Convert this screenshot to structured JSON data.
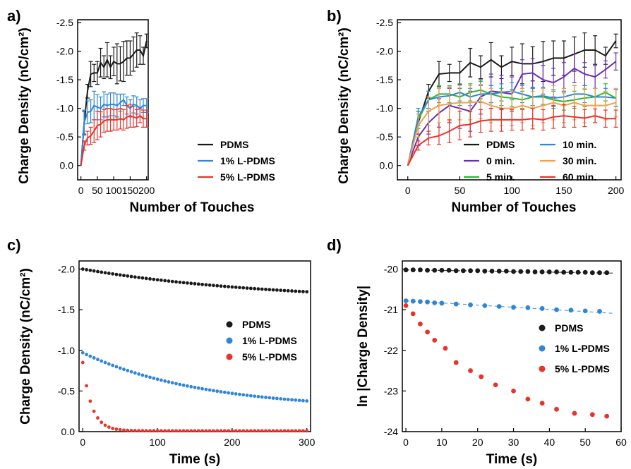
{
  "chart_data": [
    {
      "panel": "a)",
      "type": "line",
      "xlabel": "Number of Touches",
      "ylabel": "Charge Density (nC/cm²)",
      "xlim": [
        -10,
        205
      ],
      "ylim": [
        0.25,
        -2.55
      ],
      "xticks": [
        "0",
        "50",
        "100",
        "150",
        "200"
      ],
      "yticks": [
        "-2.5",
        "-2.0",
        "-1.5",
        "-1.0",
        "-0.5",
        "0.0"
      ],
      "legend": "bottom-right",
      "series": [
        {
          "name": "PDMS",
          "color": "#1a1a1a",
          "x": [
            0,
            10,
            20,
            30,
            40,
            50,
            60,
            70,
            80,
            90,
            100,
            110,
            120,
            130,
            140,
            150,
            160,
            170,
            180,
            190,
            200
          ],
          "y": [
            0,
            -0.75,
            -1.3,
            -1.6,
            -1.62,
            -1.62,
            -1.8,
            -1.72,
            -1.85,
            -1.72,
            -1.82,
            -1.78,
            -1.78,
            -1.82,
            -1.88,
            -1.88,
            -1.95,
            -2.02,
            -2.02,
            -1.92,
            -2.18
          ],
          "err": [
            0,
            0.2,
            0.12,
            0.22,
            0.15,
            0.2,
            0.25,
            0.2,
            0.3,
            0.2,
            0.25,
            0.35,
            0.3,
            0.35,
            0.3,
            0.3,
            0.3,
            0.3,
            0.25,
            0.15,
            0.12
          ]
        },
        {
          "name": "1% L-PDMS",
          "color": "#2f86d8",
          "x": [
            0,
            10,
            20,
            30,
            40,
            50,
            60,
            70,
            80,
            90,
            100,
            110,
            120,
            130,
            140,
            150,
            160,
            170,
            180,
            190,
            200
          ],
          "y": [
            0,
            -0.75,
            -0.93,
            -0.95,
            -1.05,
            -1.02,
            -1.0,
            -1.07,
            -1.05,
            -1.07,
            -1.07,
            -1.05,
            -1.1,
            -1.15,
            -1.05,
            -1.0,
            -1.07,
            -1.05,
            -1.0,
            -1.05,
            -1.05
          ],
          "err": [
            0,
            0.22,
            0.2,
            0.2,
            0.25,
            0.22,
            0.2,
            0.22,
            0.2,
            0.2,
            0.2,
            0.2,
            0.15,
            0.1,
            0.15,
            0.15,
            0.15,
            0.15,
            0.15,
            0.12,
            0.12
          ]
        },
        {
          "name": "5% L-PDMS",
          "color": "#e8332a",
          "x": [
            0,
            10,
            20,
            30,
            40,
            50,
            60,
            70,
            80,
            90,
            100,
            110,
            120,
            130,
            140,
            150,
            160,
            170,
            180,
            190,
            200
          ],
          "y": [
            0,
            -0.35,
            -0.48,
            -0.52,
            -0.6,
            -0.7,
            -0.72,
            -0.78,
            -0.8,
            -0.8,
            -0.8,
            -0.8,
            -0.82,
            -0.8,
            -0.85,
            -0.87,
            -0.85,
            -0.83,
            -0.87,
            -0.82,
            -0.82
          ],
          "err": [
            0,
            0.08,
            0.12,
            0.15,
            0.2,
            0.25,
            0.22,
            0.2,
            0.2,
            0.2,
            0.18,
            0.18,
            0.18,
            0.18,
            0.2,
            0.2,
            0.18,
            0.15,
            0.12,
            0.15,
            0.15
          ]
        }
      ]
    },
    {
      "panel": "b)",
      "type": "line",
      "xlabel": "Number of Touches",
      "ylabel": "Charge Density (nC/cm²)",
      "xlim": [
        -10,
        205
      ],
      "ylim": [
        0.25,
        -2.55
      ],
      "xticks": [
        "0",
        "50",
        "100",
        "150",
        "200"
      ],
      "yticks": [
        "-2.5",
        "-2.0",
        "-1.5",
        "-1.0",
        "-0.5",
        "0.0"
      ],
      "legend": "bottom-right",
      "series": [
        {
          "name": "PDMS",
          "color": "#1a1a1a",
          "x": [
            0,
            10,
            20,
            30,
            40,
            50,
            60,
            70,
            80,
            90,
            100,
            110,
            120,
            130,
            140,
            150,
            160,
            170,
            180,
            190,
            200
          ],
          "y": [
            0,
            -0.75,
            -1.3,
            -1.6,
            -1.62,
            -1.62,
            -1.8,
            -1.72,
            -1.85,
            -1.72,
            -1.82,
            -1.78,
            -1.78,
            -1.82,
            -1.88,
            -1.88,
            -1.95,
            -2.02,
            -2.02,
            -1.92,
            -2.18
          ],
          "err": [
            0,
            0.2,
            0.12,
            0.22,
            0.15,
            0.2,
            0.25,
            0.2,
            0.3,
            0.2,
            0.25,
            0.35,
            0.3,
            0.35,
            0.3,
            0.3,
            0.3,
            0.3,
            0.25,
            0.15,
            0.12
          ]
        },
        {
          "name": "0 min.",
          "color": "#6a2db8",
          "x": [
            0,
            10,
            20,
            30,
            40,
            50,
            60,
            70,
            80,
            90,
            100,
            110,
            120,
            130,
            140,
            150,
            160,
            170,
            180,
            190,
            200
          ],
          "y": [
            0,
            -0.5,
            -0.75,
            -0.92,
            -1.05,
            -1.0,
            -0.95,
            -1.2,
            -1.3,
            -1.28,
            -1.25,
            -1.6,
            -1.62,
            -1.5,
            -1.45,
            -1.55,
            -1.7,
            -1.6,
            -1.55,
            -1.68,
            -1.82
          ],
          "err": [
            0,
            0.15,
            0.2,
            0.25,
            0.3,
            0.35,
            0.35,
            0.3,
            0.3,
            0.3,
            0.3,
            0.25,
            0.25,
            0.25,
            0.25,
            0.25,
            0.25,
            0.2,
            0.2,
            0.15,
            0.15
          ]
        },
        {
          "name": "5 min.",
          "color": "#2ab830",
          "x": [
            0,
            10,
            20,
            30,
            40,
            50,
            60,
            70,
            80,
            90,
            100,
            110,
            120,
            130,
            140,
            150,
            160,
            170,
            180,
            190,
            200
          ],
          "y": [
            0,
            -0.8,
            -1.15,
            -1.25,
            -1.25,
            -1.2,
            -1.28,
            -1.32,
            -1.25,
            -1.2,
            -1.18,
            -1.15,
            -1.2,
            -1.2,
            -1.15,
            -1.12,
            -1.15,
            -1.18,
            -1.2,
            -1.28,
            -1.18
          ],
          "err": [
            0,
            0.15,
            0.15,
            0.15,
            0.15,
            0.15,
            0.15,
            0.15,
            0.15,
            0.15,
            0.15,
            0.15,
            0.15,
            0.15,
            0.15,
            0.15,
            0.15,
            0.15,
            0.15,
            0.15,
            0.15
          ]
        },
        {
          "name": "10 min.",
          "color": "#2f86d8",
          "x": [
            0,
            10,
            20,
            30,
            40,
            50,
            60,
            70,
            80,
            90,
            100,
            110,
            120,
            130,
            140,
            150,
            160,
            170,
            180,
            190,
            200
          ],
          "y": [
            0,
            -0.85,
            -1.15,
            -1.2,
            -1.22,
            -1.28,
            -1.2,
            -1.25,
            -1.25,
            -1.28,
            -1.3,
            -1.25,
            -1.2,
            -1.22,
            -1.18,
            -1.2,
            -1.25,
            -1.25,
            -1.2,
            -1.2,
            -1.18
          ],
          "err": [
            0,
            0.15,
            0.15,
            0.15,
            0.15,
            0.15,
            0.15,
            0.15,
            0.15,
            0.15,
            0.15,
            0.15,
            0.15,
            0.15,
            0.15,
            0.15,
            0.15,
            0.15,
            0.15,
            0.15,
            0.15
          ]
        },
        {
          "name": "30 min.",
          "color": "#f2a14a",
          "x": [
            0,
            10,
            20,
            30,
            40,
            50,
            60,
            70,
            80,
            90,
            100,
            110,
            120,
            130,
            140,
            150,
            160,
            170,
            180,
            190,
            200
          ],
          "y": [
            0,
            -0.7,
            -0.95,
            -1.05,
            -1.08,
            -1.1,
            -1.1,
            -1.12,
            -1.05,
            -1.0,
            -1.0,
            -1.05,
            -1.0,
            -1.05,
            -1.1,
            -1.05,
            -1.1,
            -1.05,
            -1.05,
            -1.05,
            -1.1
          ],
          "err": [
            0,
            0.2,
            0.25,
            0.3,
            0.3,
            0.3,
            0.3,
            0.3,
            0.3,
            0.3,
            0.3,
            0.3,
            0.3,
            0.3,
            0.3,
            0.3,
            0.3,
            0.3,
            0.3,
            0.25,
            0.25
          ]
        },
        {
          "name": "60 min.",
          "color": "#e8332a",
          "x": [
            0,
            10,
            20,
            30,
            40,
            50,
            60,
            70,
            80,
            90,
            100,
            110,
            120,
            130,
            140,
            150,
            160,
            170,
            180,
            190,
            200
          ],
          "y": [
            0,
            -0.35,
            -0.48,
            -0.52,
            -0.6,
            -0.7,
            -0.72,
            -0.78,
            -0.8,
            -0.8,
            -0.8,
            -0.8,
            -0.82,
            -0.8,
            -0.85,
            -0.87,
            -0.85,
            -0.83,
            -0.87,
            -0.82,
            -0.82
          ],
          "err": [
            0,
            0.08,
            0.12,
            0.15,
            0.2,
            0.25,
            0.22,
            0.2,
            0.2,
            0.2,
            0.18,
            0.18,
            0.18,
            0.18,
            0.2,
            0.2,
            0.18,
            0.15,
            0.12,
            0.15,
            0.15
          ]
        }
      ]
    },
    {
      "panel": "c)",
      "type": "scatter",
      "xlabel": "Time (s)",
      "ylabel": "Charge Density (nC/cm²)",
      "xlim": [
        -5,
        305
      ],
      "ylim": [
        0,
        -2.1
      ],
      "xticks": [
        "0",
        "100",
        "200",
        "300"
      ],
      "yticks": [
        "-2.0",
        "-1.5",
        "-1.0",
        "-0.5",
        "0.0"
      ],
      "legend": "center-right",
      "series": [
        {
          "name": "PDMS",
          "color": "#1a1a1a",
          "model": {
            "a": -2.0,
            "b": -0.4,
            "tau": 250,
            "c": 0,
            "n": 60,
            "tmax": 300
          }
        },
        {
          "name": "1% L-PDMS",
          "color": "#2f86d8",
          "model": {
            "a": -0.97,
            "b": -0.7,
            "tau": 160,
            "c": 0,
            "n": 60,
            "tmax": 300
          }
        },
        {
          "name": "5% L-PDMS",
          "color": "#e8332a",
          "model": {
            "a": -0.85,
            "b": -0.84,
            "tau": 12,
            "c": -0.01,
            "n": 60,
            "tmax": 300
          }
        }
      ]
    },
    {
      "panel": "d)",
      "type": "scatter",
      "xlabel": "Time (s)",
      "ylabel": "ln |Charge Density|",
      "xlim": [
        -1,
        60
      ],
      "ylim": [
        -24,
        -19.8
      ],
      "xticks": [
        "0",
        "10",
        "20",
        "30",
        "40",
        "50",
        "60"
      ],
      "yticks": [
        "-20",
        "-21",
        "-22",
        "-23",
        "-24"
      ],
      "legend": "center-right",
      "series": [
        {
          "name": "PDMS",
          "color": "#1a1a1a",
          "x": [
            0,
            2,
            4,
            6,
            8,
            10,
            12,
            14,
            16,
            18,
            20,
            22,
            24,
            26,
            28,
            30,
            32,
            34,
            36,
            38,
            40,
            42,
            44,
            46,
            48,
            50,
            52,
            54,
            56
          ],
          "y": [
            -20.02,
            -20.02,
            -20.02,
            -20.03,
            -20.03,
            -20.03,
            -20.03,
            -20.04,
            -20.04,
            -20.04,
            -20.04,
            -20.05,
            -20.05,
            -20.05,
            -20.05,
            -20.06,
            -20.06,
            -20.06,
            -20.07,
            -20.07,
            -20.07,
            -20.07,
            -20.08,
            -20.08,
            -20.08,
            -20.08,
            -20.09,
            -20.09,
            -20.09
          ],
          "fit": [
            [
              0,
              -20.02
            ],
            [
              58,
              -20.1
            ]
          ]
        },
        {
          "name": "1% L-PDMS",
          "color": "#2f86d8",
          "x": [
            0,
            2,
            4,
            6,
            8,
            10,
            14,
            18,
            22,
            26,
            30,
            34,
            38,
            42,
            46,
            50,
            54
          ],
          "y": [
            -20.78,
            -20.79,
            -20.8,
            -20.81,
            -20.83,
            -20.84,
            -20.86,
            -20.88,
            -20.9,
            -20.92,
            -20.94,
            -20.95,
            -20.97,
            -21.0,
            -21.01,
            -21.03,
            -21.04
          ],
          "fit": [
            [
              0,
              -20.78
            ],
            [
              58,
              -21.09
            ]
          ]
        },
        {
          "name": "5% L-PDMS",
          "color": "#e8332a",
          "x": [
            0,
            2,
            4,
            6,
            8,
            11,
            14,
            18,
            21,
            25,
            30,
            34,
            38,
            42,
            47,
            52,
            56
          ],
          "y": [
            -20.9,
            -21.1,
            -21.35,
            -21.55,
            -21.75,
            -21.95,
            -22.3,
            -22.5,
            -22.65,
            -22.85,
            -23.0,
            -23.2,
            -23.3,
            -23.45,
            -23.55,
            -23.58,
            -23.62
          ]
        }
      ]
    }
  ]
}
